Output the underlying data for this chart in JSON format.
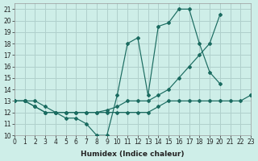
{
  "xlabel": "Humidex (Indice chaleur)",
  "background_color": "#ceeee8",
  "grid_color": "#b0d0cc",
  "line_color": "#1a6b60",
  "xlim": [
    0,
    23
  ],
  "ylim": [
    10,
    21.5
  ],
  "xticks": [
    0,
    1,
    2,
    3,
    4,
    5,
    6,
    7,
    8,
    9,
    10,
    11,
    12,
    13,
    14,
    15,
    16,
    17,
    18,
    19,
    20,
    21,
    22,
    23
  ],
  "yticks": [
    10,
    11,
    12,
    13,
    14,
    15,
    16,
    17,
    18,
    19,
    20,
    21
  ],
  "line1_x": [
    0,
    1,
    2,
    3,
    4,
    5,
    6,
    7,
    8,
    9,
    10,
    11,
    12,
    13,
    14,
    15,
    16,
    17,
    18,
    19,
    20,
    21
  ],
  "line1_y": [
    13,
    13,
    13,
    12.5,
    12,
    11.5,
    11.5,
    11,
    10,
    10,
    13.5,
    18,
    18.5,
    13.5,
    19.5,
    19.8,
    21,
    21,
    18,
    15.5,
    14.5,
    null
  ],
  "line2_x": [
    0,
    1,
    2,
    3,
    4,
    5,
    6,
    7,
    8,
    9,
    10,
    11,
    12,
    13,
    14,
    15,
    16,
    17,
    18,
    19,
    20,
    21,
    22,
    23
  ],
  "line2_y": [
    13,
    13,
    12.5,
    12,
    12,
    12,
    12,
    12,
    12,
    12.2,
    12.5,
    13,
    13,
    13,
    13.5,
    14,
    15,
    16,
    17,
    18,
    20.5,
    null,
    null,
    13.5
  ],
  "line3_x": [
    0,
    1,
    2,
    3,
    4,
    5,
    6,
    7,
    8,
    9,
    10,
    11,
    12,
    13,
    14,
    15,
    16,
    17,
    18,
    19,
    20,
    21,
    22,
    23
  ],
  "line3_y": [
    13,
    13,
    12.5,
    12,
    12,
    12,
    12,
    12,
    12,
    12,
    12,
    12,
    12,
    12,
    12.5,
    13,
    13,
    13,
    13,
    13,
    13,
    13,
    13,
    13.5
  ]
}
